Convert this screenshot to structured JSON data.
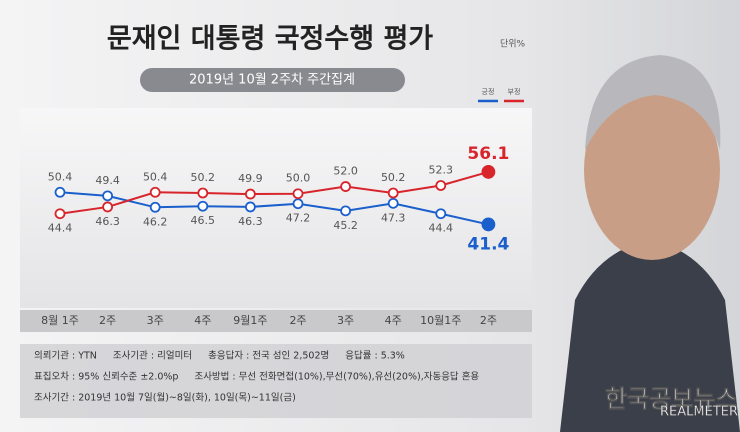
{
  "chart_data": {
    "type": "line",
    "title": "문재인 대통령 국정수행 평가",
    "unit": "단위%",
    "subtitle": "2019년 10월 2주차 주간집계",
    "categories": [
      "8월 1주",
      "2주",
      "3주",
      "4주",
      "9월1주",
      "2주",
      "3주",
      "4주",
      "10월1주",
      "2주"
    ],
    "series": [
      {
        "name": "긍정",
        "color": "#1a5fcc",
        "values": [
          50.4,
          49.4,
          46.2,
          46.5,
          46.3,
          47.2,
          45.2,
          47.3,
          44.4,
          41.4
        ],
        "value_labels": [
          "50.4",
          "49.4",
          "46.2",
          "46.5",
          "46.3",
          "47.2",
          "45.2",
          "47.3",
          "44.4",
          "41.4"
        ]
      },
      {
        "name": "부정",
        "color": "#d8242b",
        "values": [
          44.4,
          46.3,
          50.4,
          50.2,
          49.9,
          50.0,
          52.0,
          50.2,
          52.3,
          56.1
        ],
        "value_labels": [
          "44.4",
          "46.3",
          "50.4",
          "50.2",
          "49.9",
          "50.0",
          "52.0",
          "50.2",
          "52.3",
          "56.1"
        ]
      }
    ],
    "ylim": [
      18,
      74
    ],
    "legend": "top-right",
    "notes": [
      [
        "의뢰기관 : YTN",
        "조사기관 : 리얼미터",
        "총응답자 : 전국 성인 2,502명",
        "응답률 : 5.3%"
      ],
      [
        "표집오차 : 95% 신뢰수준 ±2.0%p",
        "조사방법 : 무선 전화면접(10%),무선(70%),유선(20%),자동응답 혼용"
      ],
      [
        "조사기간 : 2019년 10월 7일(월)~8일(화), 10일(목)~11일(금)"
      ]
    ],
    "watermark": "한국공보뉴스",
    "brand": "REALMETER"
  }
}
